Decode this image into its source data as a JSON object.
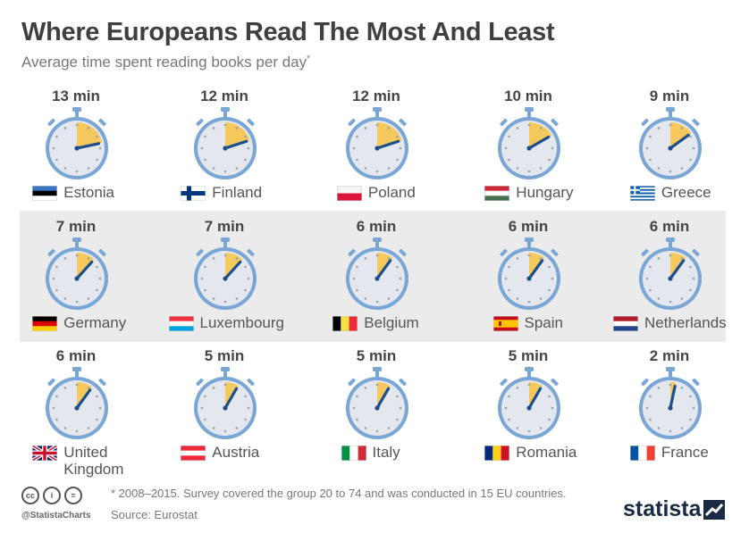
{
  "header": {
    "title": "Where Europeans Read The Most And Least",
    "subtitle": "Average time spent reading books per day",
    "subtitle_mark": "*"
  },
  "chart_data": {
    "type": "stopwatch-icon-array",
    "title": "Where Europeans Read The Most And Least",
    "subtitle": "Average time spent reading books per day*",
    "unit": "min",
    "categories": [
      "Estonia",
      "Finland",
      "Poland",
      "Hungary",
      "Greece",
      "Germany",
      "Luxembourg",
      "Belgium",
      "Spain",
      "Netherlands",
      "United Kingdom",
      "Austria",
      "Italy",
      "Romania",
      "France"
    ],
    "values": [
      13,
      12,
      12,
      10,
      9,
      7,
      7,
      6,
      6,
      6,
      6,
      5,
      5,
      5,
      2
    ],
    "items": [
      {
        "country": "Estonia",
        "minutes": 13,
        "label": "13 min",
        "flag": "estonia-flag"
      },
      {
        "country": "Finland",
        "minutes": 12,
        "label": "12 min",
        "flag": "finland-flag"
      },
      {
        "country": "Poland",
        "minutes": 12,
        "label": "12 min",
        "flag": "poland-flag"
      },
      {
        "country": "Hungary",
        "minutes": 10,
        "label": "10 min",
        "flag": "hungary-flag"
      },
      {
        "country": "Greece",
        "minutes": 9,
        "label": "9 min",
        "flag": "greece-flag"
      },
      {
        "country": "Germany",
        "minutes": 7,
        "label": "7 min",
        "flag": "germany-flag"
      },
      {
        "country": "Luxembourg",
        "minutes": 7,
        "label": "7 min",
        "flag": "luxembourg-flag"
      },
      {
        "country": "Belgium",
        "minutes": 6,
        "label": "6 min",
        "flag": "belgium-flag"
      },
      {
        "country": "Spain",
        "minutes": 6,
        "label": "6 min",
        "flag": "spain-flag"
      },
      {
        "country": "Netherlands",
        "minutes": 6,
        "label": "6 min",
        "flag": "netherlands-flag"
      },
      {
        "country": "United\nKingdom",
        "minutes": 6,
        "label": "6 min",
        "flag": "uk-flag"
      },
      {
        "country": "Austria",
        "minutes": 5,
        "label": "5 min",
        "flag": "austria-flag"
      },
      {
        "country": "Italy",
        "minutes": 5,
        "label": "5 min",
        "flag": "italy-flag"
      },
      {
        "country": "Romania",
        "minutes": 5,
        "label": "5 min",
        "flag": "romania-flag"
      },
      {
        "country": "France",
        "minutes": 2,
        "label": "2 min",
        "flag": "france-flag"
      }
    ],
    "dial_full_scale_minutes": 60
  },
  "colors": {
    "dial_ring": "#7aa6d6",
    "dial_face": "#e4e8ee",
    "sector": "#f5c95b",
    "hand": "#1d4f8c",
    "band": "#ebebeb"
  },
  "footer": {
    "note": "* 2008–2015. Survey covered the group 20 to 74 and was conducted in 15 EU countries.",
    "source": "Source: Eurostat",
    "handle": "@StatistaCharts",
    "brand": "statista",
    "license_icons": [
      "cc-icon",
      "by-icon",
      "nd-icon"
    ]
  }
}
